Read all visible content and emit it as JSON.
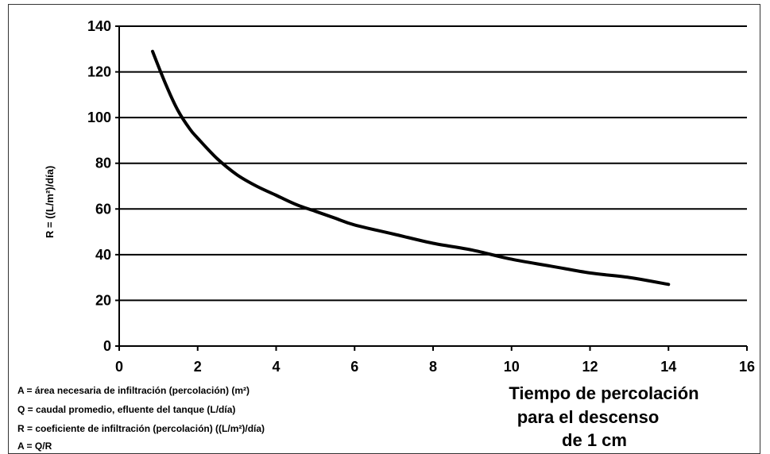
{
  "chart_data": {
    "type": "line",
    "title": "",
    "ylabel": "R = ((L/m²)/día)",
    "xlabel_lines": [
      "Tiempo de percolación",
      "para el descenso",
      "de 1 cm"
    ],
    "xlim": [
      0,
      16
    ],
    "ylim": [
      0,
      140
    ],
    "xticks": [
      "0",
      "2",
      "4",
      "6",
      "8",
      "10",
      "12",
      "14",
      "16"
    ],
    "yticks": [
      "0",
      "20",
      "40",
      "60",
      "80",
      "100",
      "120",
      "140"
    ],
    "grid": "horizontal",
    "series": [
      {
        "x": [
          0.85,
          1.2,
          1.5,
          1.8,
          2.0,
          2.5,
          3.0,
          3.5,
          4.0,
          4.5,
          5.0,
          5.5,
          6.0,
          7.0,
          8.0,
          9.0,
          10.0,
          11.0,
          12.0,
          13.0,
          14.0
        ],
        "values": [
          129,
          114,
          103,
          95,
          91,
          82,
          75,
          70,
          66,
          62,
          59,
          56,
          53,
          49,
          45,
          42,
          38,
          35,
          32,
          30,
          27
        ]
      }
    ],
    "annotations": [
      "A = área necesaria de infiltración (percolación) (m²)",
      "Q = caudal promedio, efluente del tanque (L/día)",
      "R = coeficiente de infiltración (percolación) ((L/m²)/día)",
      "A = Q/R"
    ]
  }
}
